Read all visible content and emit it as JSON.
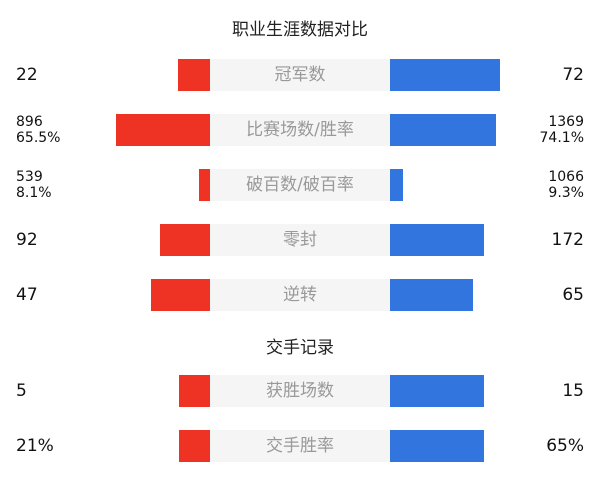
{
  "colors": {
    "left": "#EE3224",
    "right": "#3375DF",
    "label_bg": "#F5F5F5"
  },
  "chart_data": {
    "type": "bar",
    "title": "职业生涯数据对比",
    "section2_title": "交手记录",
    "rows": [
      {
        "label": "冠军数",
        "left": [
          "22"
        ],
        "right": [
          "72"
        ],
        "left_bar": 0.18,
        "right_bar": 0.61
      },
      {
        "label": "比赛场数/胜率",
        "left": [
          "896",
          "65.5%"
        ],
        "right": [
          "1369",
          "74.1%"
        ],
        "left_bar": 0.52,
        "right_bar": 0.59
      },
      {
        "label": "破百数/破百率",
        "left": [
          "539",
          "8.1%"
        ],
        "right": [
          "1066",
          "9.3%"
        ],
        "left_bar": 0.06,
        "right_bar": 0.07
      },
      {
        "label": "零封",
        "left": [
          "92"
        ],
        "right": [
          "172"
        ],
        "left_bar": 0.28,
        "right_bar": 0.52
      },
      {
        "label": "逆转",
        "left": [
          "47"
        ],
        "right": [
          "65"
        ],
        "left_bar": 0.33,
        "right_bar": 0.46
      },
      {
        "label": "获胜场数",
        "left": [
          "5"
        ],
        "right": [
          "15"
        ],
        "left_bar": 0.17,
        "right_bar": 0.52
      },
      {
        "label": "交手胜率",
        "left": [
          "21%"
        ],
        "right": [
          "65%"
        ],
        "left_bar": 0.17,
        "right_bar": 0.52
      }
    ]
  }
}
